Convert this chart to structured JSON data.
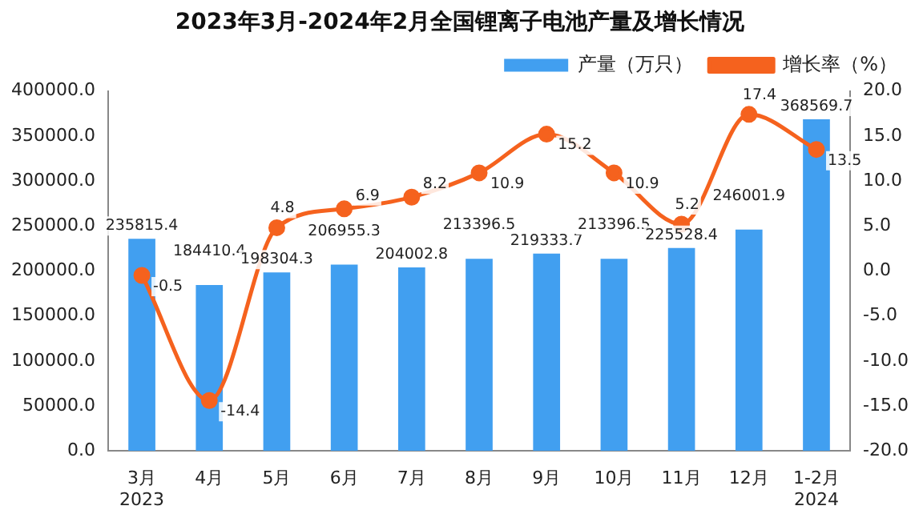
{
  "chart_data": {
    "type": "bar",
    "title": "2023年3月-2024年2月全国锂离子电池产量及增长情况",
    "categories": [
      "3月\n2023",
      "4月",
      "5月",
      "6月",
      "7月",
      "8月",
      "9月",
      "10月",
      "11月",
      "12月",
      "1-2月\n2024"
    ],
    "series": [
      {
        "name": "产量（万只）",
        "color": "#419ff0",
        "values": [
          235815.4,
          184410.4,
          198304.3,
          206955.3,
          204002.8,
          213396.5,
          219333.7,
          213396.5,
          225528.4,
          246001.9,
          368569.7
        ]
      },
      {
        "name": "增长率（%）",
        "type": "line",
        "axis": "y2",
        "color": "#f5621e",
        "marker": "circle",
        "values": [
          -0.5,
          -14.4,
          4.8,
          6.9,
          8.2,
          10.9,
          15.2,
          10.9,
          5.2,
          17.4,
          13.5
        ]
      }
    ],
    "ylim": [
      0,
      400000
    ],
    "yticks": [
      {
        "value": 0,
        "label": "0.0"
      },
      {
        "value": 50000,
        "label": "50000.0"
      },
      {
        "value": 100000,
        "label": "100000.0"
      },
      {
        "value": 150000,
        "label": "150000.0"
      },
      {
        "value": 200000,
        "label": "200000.0"
      },
      {
        "value": 250000,
        "label": "250000.0"
      },
      {
        "value": 300000,
        "label": "300000.0"
      },
      {
        "value": 350000,
        "label": "350000.0"
      },
      {
        "value": 400000,
        "label": "400000.0"
      }
    ],
    "y2lim": [
      -20,
      20
    ],
    "y2ticks": [
      {
        "value": -20,
        "label": "-20.0"
      },
      {
        "value": -15,
        "label": "-15.0"
      },
      {
        "value": -10,
        "label": "-10.0"
      },
      {
        "value": -5,
        "label": "-5.0"
      },
      {
        "value": 0,
        "label": "0.0"
      },
      {
        "value": 5,
        "label": "5.0"
      },
      {
        "value": 10,
        "label": "10.0"
      },
      {
        "value": 15,
        "label": "15.0"
      },
      {
        "value": 20,
        "label": "20.0"
      }
    ],
    "data_labels": true,
    "legend": "top right",
    "grid": false
  }
}
